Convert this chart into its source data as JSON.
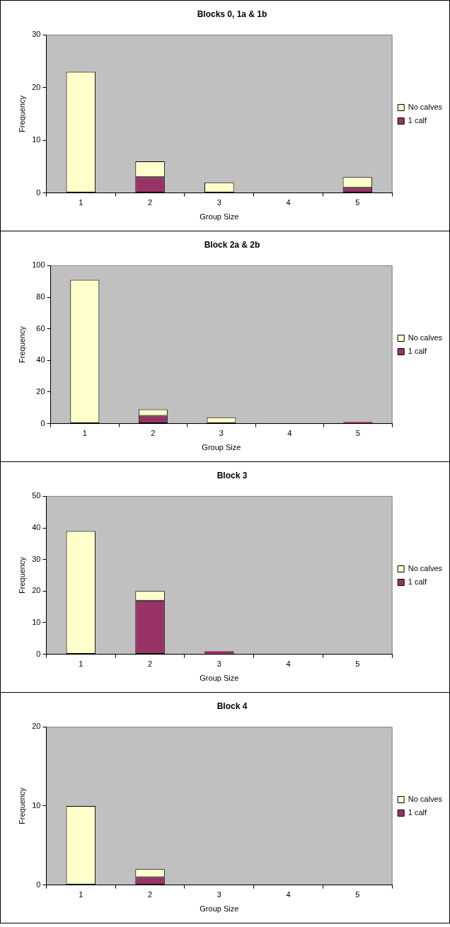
{
  "chart_data": [
    {
      "type": "bar",
      "title": "Blocks 0, 1a & 1b",
      "xlabel": "Group Size",
      "ylabel": "Frequency",
      "categories": [
        "1",
        "2",
        "3",
        "4",
        "5"
      ],
      "stacked": true,
      "ylim": [
        0,
        30
      ],
      "yticks": [
        0,
        10,
        20,
        30
      ],
      "grid": false,
      "legend": "right",
      "series": [
        {
          "name": "1 calf",
          "color": "#993366",
          "values": [
            0,
            3,
            0,
            0,
            1
          ]
        },
        {
          "name": "No calves",
          "color": "#ffffcc",
          "values": [
            23,
            3,
            2,
            0,
            2
          ]
        }
      ]
    },
    {
      "type": "bar",
      "title": "Block 2a & 2b",
      "xlabel": "Group Size",
      "ylabel": "Frequency",
      "categories": [
        "1",
        "2",
        "3",
        "4",
        "5"
      ],
      "stacked": true,
      "ylim": [
        0,
        100
      ],
      "yticks": [
        0,
        20,
        40,
        60,
        80,
        100
      ],
      "grid": false,
      "legend": "right",
      "series": [
        {
          "name": "1 calf",
          "color": "#993366",
          "values": [
            0,
            5,
            0,
            0,
            1
          ]
        },
        {
          "name": "No calves",
          "color": "#ffffcc",
          "values": [
            91,
            4,
            4,
            0,
            0
          ]
        }
      ]
    },
    {
      "type": "bar",
      "title": "Block 3",
      "xlabel": "Group Size",
      "ylabel": "Frequency",
      "categories": [
        "1",
        "2",
        "3",
        "4",
        "5"
      ],
      "stacked": true,
      "ylim": [
        0,
        50
      ],
      "yticks": [
        0,
        10,
        20,
        30,
        40,
        50
      ],
      "grid": false,
      "legend": "right",
      "series": [
        {
          "name": "1 calf",
          "color": "#993366",
          "values": [
            0,
            17,
            1,
            0,
            0
          ]
        },
        {
          "name": "No calves",
          "color": "#ffffcc",
          "values": [
            39,
            3,
            0,
            0,
            0
          ]
        }
      ]
    },
    {
      "type": "bar",
      "title": "Block 4",
      "xlabel": "Group Size",
      "ylabel": "Frequency",
      "categories": [
        "1",
        "2",
        "3",
        "4",
        "5"
      ],
      "stacked": true,
      "ylim": [
        0,
        20
      ],
      "yticks": [
        0,
        10,
        20
      ],
      "grid": false,
      "legend": "right",
      "series": [
        {
          "name": "1 calf",
          "color": "#993366",
          "values": [
            0,
            1,
            0,
            0,
            0
          ]
        },
        {
          "name": "No calves",
          "color": "#ffffcc",
          "values": [
            10,
            1,
            0,
            0,
            0
          ]
        }
      ]
    }
  ]
}
